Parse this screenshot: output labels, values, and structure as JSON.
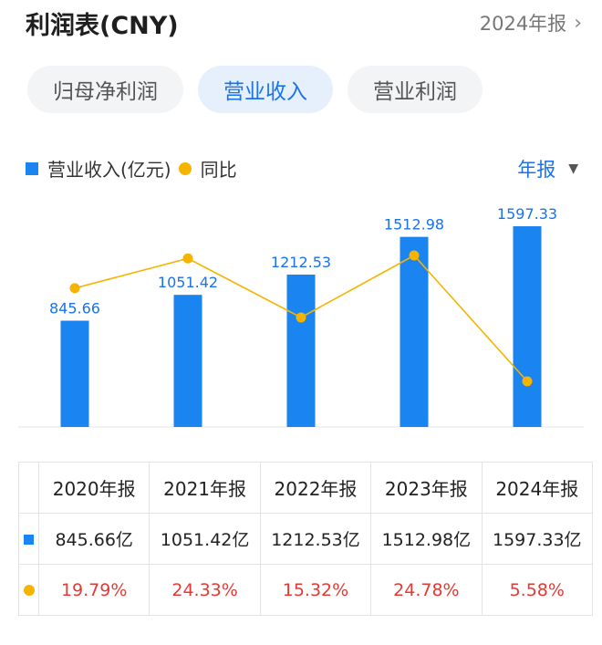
{
  "header": {
    "title": "利润表(CNY)",
    "period_link": "2024年报"
  },
  "tabs": [
    {
      "label": "归母净利润",
      "active": false
    },
    {
      "label": "营业收入",
      "active": true
    },
    {
      "label": "营业利润",
      "active": false
    }
  ],
  "legend": {
    "bar_label": "营业收入(亿元)",
    "line_label": "同比"
  },
  "period_select": "年报",
  "colors": {
    "bar": "#1a84f1",
    "line": "#f6b400",
    "accent": "#1a73e8",
    "negative_text": "#e53935"
  },
  "chart_data": {
    "type": "bar",
    "categories": [
      "2020年报",
      "2021年报",
      "2022年报",
      "2023年报",
      "2024年报"
    ],
    "series": [
      {
        "name": "营业收入(亿元)",
        "type": "bar",
        "values": [
          845.66,
          1051.42,
          1212.53,
          1512.98,
          1597.33
        ]
      },
      {
        "name": "同比",
        "type": "line",
        "values": [
          19.79,
          24.33,
          15.32,
          24.78,
          5.58
        ]
      }
    ],
    "data_labels": [
      "845.66",
      "1051.42",
      "1212.53",
      "1512.98",
      "1597.33"
    ]
  },
  "table": {
    "headers": [
      "2020年报",
      "2021年报",
      "2022年报",
      "2023年报",
      "2024年报"
    ],
    "revenue": [
      "845.66亿",
      "1051.42亿",
      "1212.53亿",
      "1512.98亿",
      "1597.33亿"
    ],
    "yoy": [
      "19.79%",
      "24.33%",
      "15.32%",
      "24.78%",
      "5.58%"
    ]
  }
}
